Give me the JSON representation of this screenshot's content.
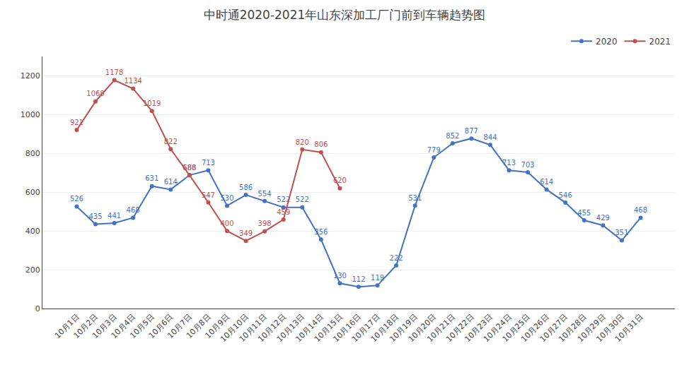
{
  "chart_data": {
    "type": "line",
    "title": "中时通2020-2021年山东深加工厂门前到车辆趋势图",
    "categories": [
      "10月1日",
      "10月2日",
      "10月3日",
      "10月4日",
      "10月5日",
      "10月6日",
      "10月7日",
      "10月8日",
      "10月9日",
      "10月10日",
      "10月11日",
      "10月12日",
      "10月13日",
      "10月14日",
      "10月15日",
      "10月16日",
      "10月17日",
      "10月18日",
      "10月19日",
      "10月20日",
      "10月21日",
      "10月22日",
      "10月23日",
      "10月24日",
      "10月25日",
      "10月26日",
      "10月27日",
      "10月28日",
      "10月29日",
      "10月30日",
      "10月31日"
    ],
    "series": [
      {
        "name": "2020",
        "color": "#4472C4",
        "values": [
          526,
          435,
          441,
          468,
          631,
          614,
          688,
          713,
          530,
          586,
          554,
          522,
          522,
          356,
          130,
          112,
          119,
          222,
          531,
          779,
          852,
          877,
          844,
          713,
          703,
          614,
          546,
          455,
          429,
          351,
          468
        ]
      },
      {
        "name": "2021",
        "color": "#C0504D",
        "values": [
          921,
          1068,
          1178,
          1134,
          1019,
          822,
          688,
          547,
          400,
          349,
          398,
          459,
          820,
          806,
          620,
          null,
          null,
          null,
          null,
          null,
          null,
          null,
          null,
          null,
          null,
          null,
          null,
          null,
          null,
          null,
          null
        ]
      }
    ],
    "ylim": [
      0,
      1300
    ],
    "yticks": [
      0,
      200,
      400,
      600,
      800,
      1000,
      1200
    ],
    "grid": true,
    "legend": "upper right",
    "data_labels": true,
    "marker": "circle"
  }
}
